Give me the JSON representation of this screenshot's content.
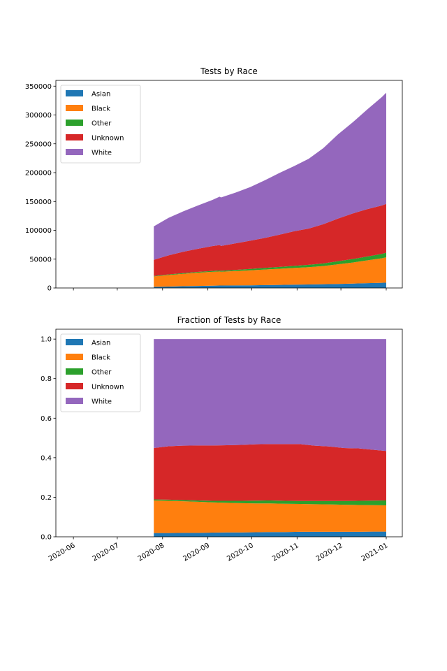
{
  "chart_data": [
    {
      "type": "area",
      "stacked": true,
      "title": "Tests by Race",
      "xlabel": "",
      "ylabel": "",
      "x_range": [
        "2020-05-20",
        "2021-01-12"
      ],
      "ylim": [
        0,
        360000
      ],
      "y_ticks": [
        0,
        50000,
        100000,
        150000,
        200000,
        250000,
        300000,
        350000
      ],
      "y_tick_labels": [
        "0",
        "50000",
        "100000",
        "150000",
        "200000",
        "250000",
        "300000",
        "350000"
      ],
      "legend_position": "upper-left",
      "grid": false,
      "x": [
        "2020-07-26",
        "2020-08-05",
        "2020-08-15",
        "2020-08-25",
        "2020-09-04",
        "2020-09-09",
        "2020-09-10",
        "2020-09-20",
        "2020-09-30",
        "2020-10-10",
        "2020-10-20",
        "2020-10-30",
        "2020-11-09",
        "2020-11-19",
        "2020-11-29",
        "2020-12-09",
        "2020-12-19",
        "2020-12-29",
        "2021-01-01"
      ],
      "series": [
        {
          "name": "Asian",
          "color": "#1f77b4",
          "values": [
            2000,
            2500,
            3000,
            3500,
            4000,
            4200,
            4200,
            4400,
            4600,
            5000,
            5300,
            5700,
            6100,
            6500,
            7000,
            7600,
            8300,
            9000,
            9200
          ]
        },
        {
          "name": "Black",
          "color": "#ff7f0e",
          "values": [
            18000,
            20000,
            21500,
            23000,
            24000,
            24500,
            24000,
            25000,
            26000,
            27000,
            28000,
            29000,
            30000,
            31500,
            34000,
            36500,
            39500,
            42500,
            44000
          ]
        },
        {
          "name": "Other",
          "color": "#2ca02c",
          "values": [
            800,
            1000,
            1200,
            1400,
            1600,
            1700,
            1700,
            2000,
            2400,
            2800,
            3200,
            3600,
            4000,
            4600,
            5300,
            6000,
            6800,
            7600,
            8000
          ]
        },
        {
          "name": "Unknown",
          "color": "#d62728",
          "values": [
            28000,
            33000,
            37000,
            40000,
            43000,
            44000,
            43000,
            46000,
            49000,
            52000,
            56000,
            60000,
            63000,
            68000,
            74000,
            79000,
            82000,
            84000,
            84500
          ]
        },
        {
          "name": "White",
          "color": "#9467bd",
          "values": [
            58000,
            65000,
            70000,
            75000,
            80000,
            84000,
            84000,
            88000,
            93000,
            100000,
            107000,
            113000,
            121000,
            132000,
            146000,
            158000,
            173000,
            188000,
            193000
          ]
        }
      ]
    },
    {
      "type": "area",
      "stacked": true,
      "title": "Fraction of Tests by Race",
      "xlabel": "",
      "ylabel": "",
      "x_range": [
        "2020-05-20",
        "2021-01-12"
      ],
      "ylim": [
        0,
        1.05
      ],
      "y_ticks": [
        0.0,
        0.2,
        0.4,
        0.6,
        0.8,
        1.0
      ],
      "y_tick_labels": [
        "0.0",
        "0.2",
        "0.4",
        "0.6",
        "0.8",
        "1.0"
      ],
      "x_ticks": [
        "2020-06-01",
        "2020-07-01",
        "2020-08-01",
        "2020-09-01",
        "2020-10-01",
        "2020-11-01",
        "2020-12-01",
        "2021-01-01"
      ],
      "x_tick_labels": [
        "2020-06",
        "2020-07",
        "2020-08",
        "2020-09",
        "2020-10",
        "2020-11",
        "2020-12",
        "2021-01"
      ],
      "legend_position": "upper-left",
      "grid": false,
      "x": [
        "2020-07-26",
        "2020-08-05",
        "2020-08-15",
        "2020-08-25",
        "2020-09-04",
        "2020-09-14",
        "2020-09-24",
        "2020-10-04",
        "2020-10-14",
        "2020-10-24",
        "2020-11-03",
        "2020-11-13",
        "2020-11-23",
        "2020-12-03",
        "2020-12-13",
        "2020-12-23",
        "2021-01-01"
      ],
      "series": [
        {
          "name": "Asian",
          "color": "#1f77b4",
          "values": [
            0.019,
            0.019,
            0.02,
            0.02,
            0.021,
            0.022,
            0.022,
            0.023,
            0.024,
            0.024,
            0.025,
            0.025,
            0.025,
            0.025,
            0.025,
            0.026,
            0.026
          ]
        },
        {
          "name": "Black",
          "color": "#ff7f0e",
          "values": [
            0.165,
            0.163,
            0.16,
            0.157,
            0.153,
            0.15,
            0.148,
            0.146,
            0.145,
            0.143,
            0.141,
            0.14,
            0.139,
            0.137,
            0.136,
            0.134,
            0.133
          ]
        },
        {
          "name": "Other",
          "color": "#2ca02c",
          "values": [
            0.005,
            0.006,
            0.006,
            0.007,
            0.008,
            0.01,
            0.012,
            0.014,
            0.015,
            0.015,
            0.015,
            0.016,
            0.017,
            0.019,
            0.021,
            0.023,
            0.025
          ]
        },
        {
          "name": "Unknown",
          "color": "#d62728",
          "values": [
            0.26,
            0.27,
            0.275,
            0.278,
            0.28,
            0.281,
            0.283,
            0.285,
            0.285,
            0.287,
            0.288,
            0.28,
            0.276,
            0.268,
            0.265,
            0.257,
            0.25
          ]
        },
        {
          "name": "White",
          "color": "#9467bd",
          "values": [
            0.551,
            0.542,
            0.539,
            0.538,
            0.538,
            0.537,
            0.535,
            0.532,
            0.531,
            0.531,
            0.531,
            0.539,
            0.543,
            0.551,
            0.553,
            0.56,
            0.566
          ]
        }
      ]
    }
  ]
}
